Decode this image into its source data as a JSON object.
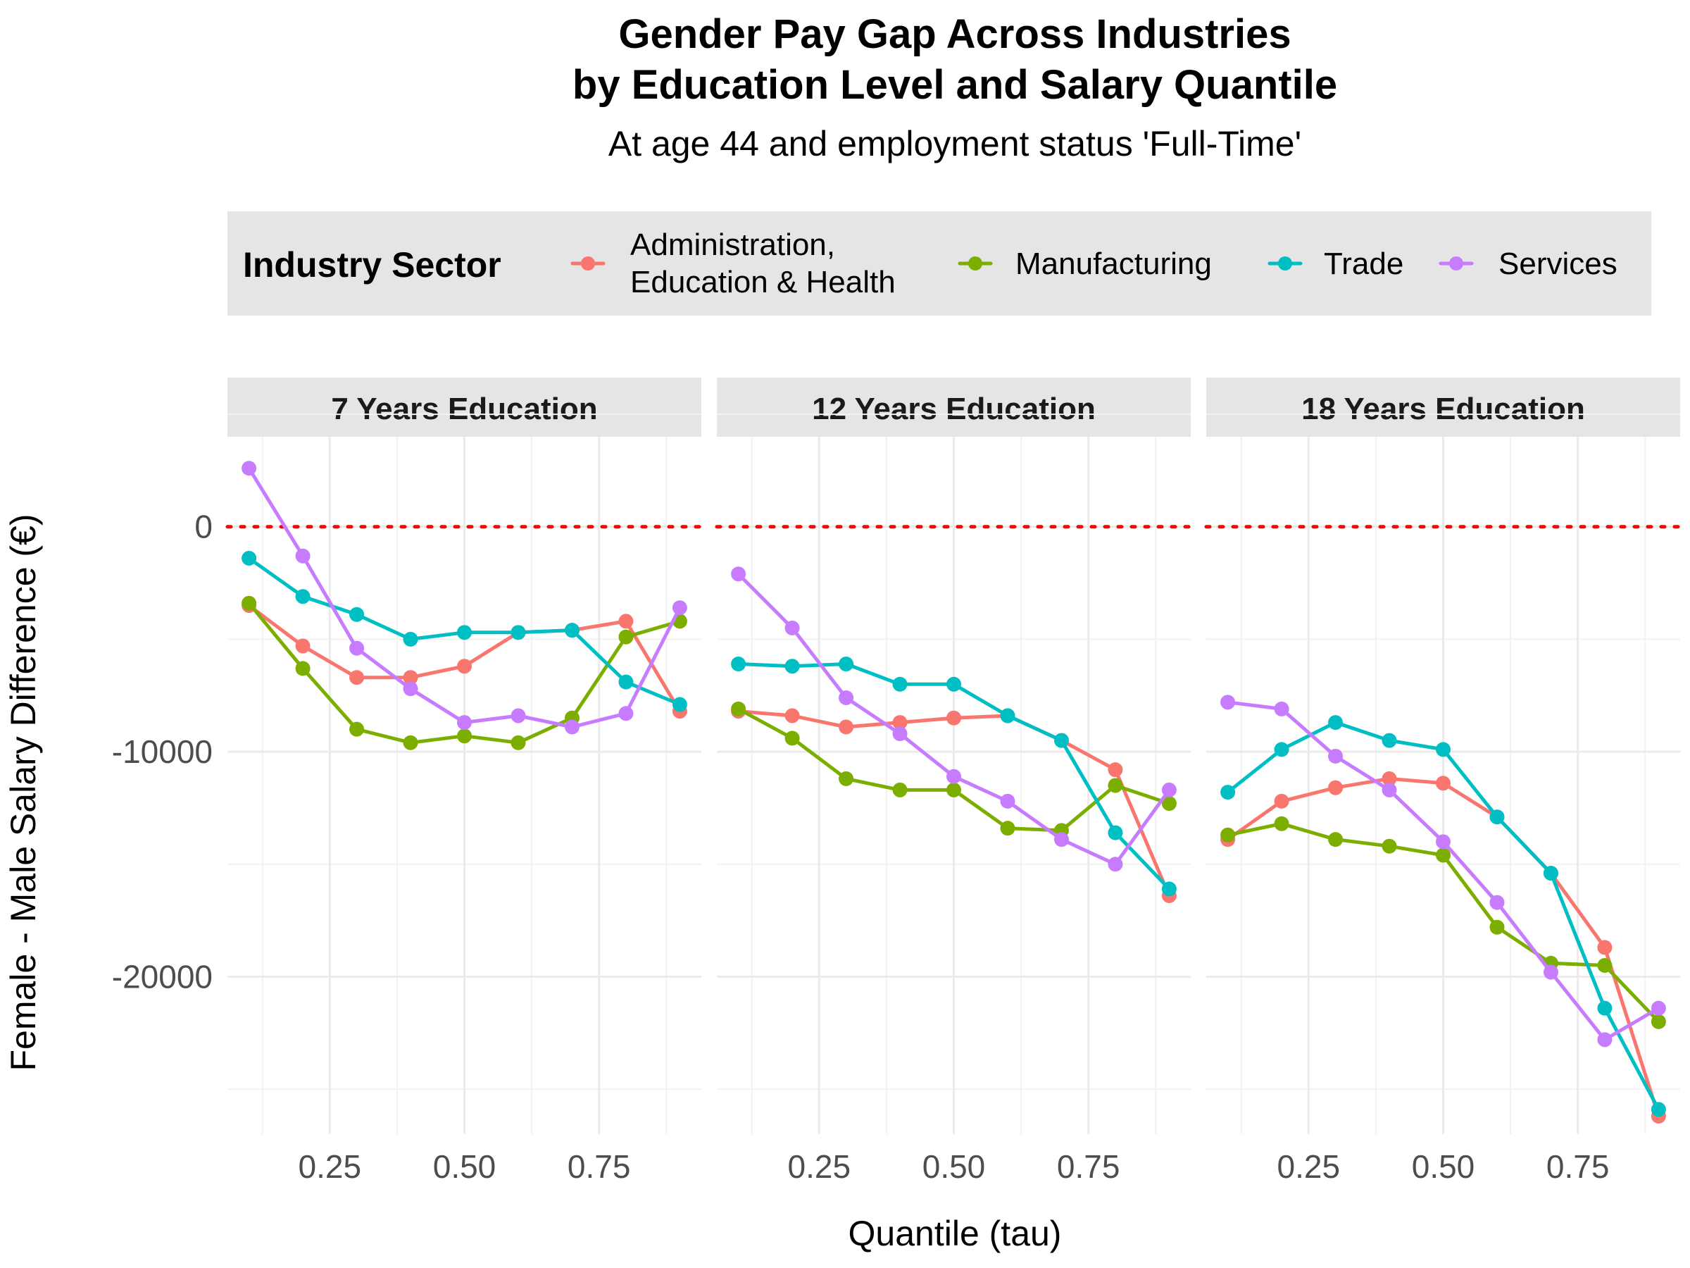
{
  "chart_data": {
    "type": "line",
    "title_lines": [
      "Gender Pay Gap Across Industries",
      "by Education Level and Salary Quantile"
    ],
    "subtitle": "At age 44 and employment status 'Full-Time'",
    "xlabel": "Quantile (tau)",
    "ylabel": "Female - Male Salary Difference (€)",
    "x_ticks": [
      0.25,
      0.5,
      0.75
    ],
    "x_tick_labels": [
      "0.25",
      "0.50",
      "0.75"
    ],
    "x_minor": [
      0.125,
      0.375,
      0.625,
      0.875
    ],
    "xlim": [
      0.06,
      0.94
    ],
    "y_ticks": [
      0,
      -10000,
      -20000
    ],
    "y_tick_labels": [
      "0",
      "-10000",
      "-20000"
    ],
    "y_minor": [
      5000,
      -5000,
      -15000,
      -25000
    ],
    "ylim": [
      -27000,
      4000
    ],
    "reference_line": {
      "y": 0,
      "color": "#FF0000",
      "style": "dotted"
    },
    "grid": true,
    "legend": {
      "title": "Industry Sector",
      "position": "top"
    },
    "x": [
      0.1,
      0.2,
      0.3,
      0.4,
      0.5,
      0.6,
      0.7,
      0.8,
      0.9
    ],
    "series_meta": [
      {
        "name_lines": [
          "Administration,",
          "Education & Health"
        ],
        "color": "#F8766D"
      },
      {
        "name_lines": [
          "Manufacturing"
        ],
        "color": "#7CAE00"
      },
      {
        "name_lines": [
          "Trade"
        ],
        "color": "#00BFC4"
      },
      {
        "name_lines": [
          "Services"
        ],
        "color": "#C77CFF"
      }
    ],
    "panels": [
      {
        "label": "7 Years Education",
        "series": [
          [
            -3500,
            -5300,
            -6700,
            -6700,
            -6200,
            -4700,
            -4600,
            -4200,
            -8200
          ],
          [
            -3400,
            -6300,
            -9000,
            -9600,
            -9300,
            -9600,
            -8500,
            -4900,
            -4200
          ],
          [
            -1400,
            -3100,
            -3900,
            -5000,
            -4700,
            -4700,
            -4600,
            -6900,
            -7900
          ],
          [
            2600,
            -1300,
            -5400,
            -7200,
            -8700,
            -8400,
            -8900,
            -8300,
            -3600
          ]
        ]
      },
      {
        "label": "12 Years Education",
        "series": [
          [
            -8200,
            -8400,
            -8900,
            -8700,
            -8500,
            -8400,
            -9500,
            -10800,
            -16400
          ],
          [
            -8100,
            -9400,
            -11200,
            -11700,
            -11700,
            -13400,
            -13500,
            -11500,
            -12300
          ],
          [
            -6100,
            -6200,
            -6100,
            -7000,
            -7000,
            -8400,
            -9500,
            -13600,
            -16100
          ],
          [
            -2100,
            -4500,
            -7600,
            -9200,
            -11100,
            -12200,
            -13900,
            -15000,
            -11700
          ]
        ]
      },
      {
        "label": "18 Years Education",
        "series": [
          [
            -13900,
            -12200,
            -11600,
            -11200,
            -11400,
            -12900,
            -15400,
            -18700,
            -26200
          ],
          [
            -13700,
            -13200,
            -13900,
            -14200,
            -14600,
            -17800,
            -19400,
            -19500,
            -22000
          ],
          [
            -11800,
            -9900,
            -8700,
            -9500,
            -9900,
            -12900,
            -15400,
            -21400,
            -25900
          ],
          [
            -7800,
            -8100,
            -10200,
            -11700,
            -14000,
            -16700,
            -19800,
            -22800,
            -21400
          ]
        ]
      }
    ]
  }
}
